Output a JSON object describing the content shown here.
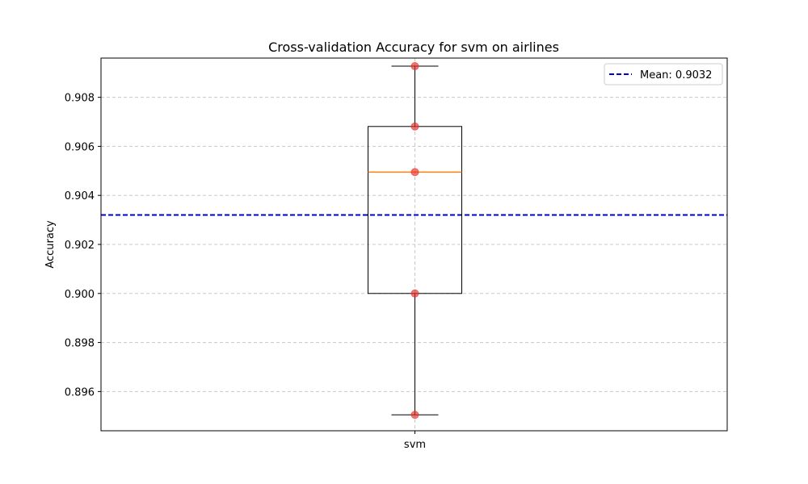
{
  "chart_data": {
    "type": "box",
    "title": "Cross-validation Accuracy for svm on airlines",
    "xlabel": "",
    "ylabel": "Accuracy",
    "categories": [
      "svm"
    ],
    "ylim": [
      0.8944,
      0.9096
    ],
    "yticks": [
      0.896,
      0.898,
      0.9,
      0.902,
      0.904,
      0.906,
      0.908
    ],
    "ytick_labels": [
      "0.896",
      "0.898",
      "0.900",
      "0.902",
      "0.904",
      "0.906",
      "0.908"
    ],
    "grid": true,
    "box": {
      "min": 0.89505,
      "q1": 0.9,
      "median": 0.90495,
      "q3": 0.90681,
      "max": 0.90927
    },
    "points": [
      0.90927,
      0.90681,
      0.90495,
      0.9,
      0.89505
    ],
    "mean_line": {
      "value": 0.9032,
      "label": "Mean: 0.9032"
    },
    "legend": {
      "position": "top-right",
      "entries": [
        "Mean: 0.9032"
      ]
    },
    "colors": {
      "box": "#000000",
      "median": "#ff7f0e",
      "points": "#e8302a",
      "mean": "#0000cc",
      "grid": "#c8c8c8"
    }
  }
}
